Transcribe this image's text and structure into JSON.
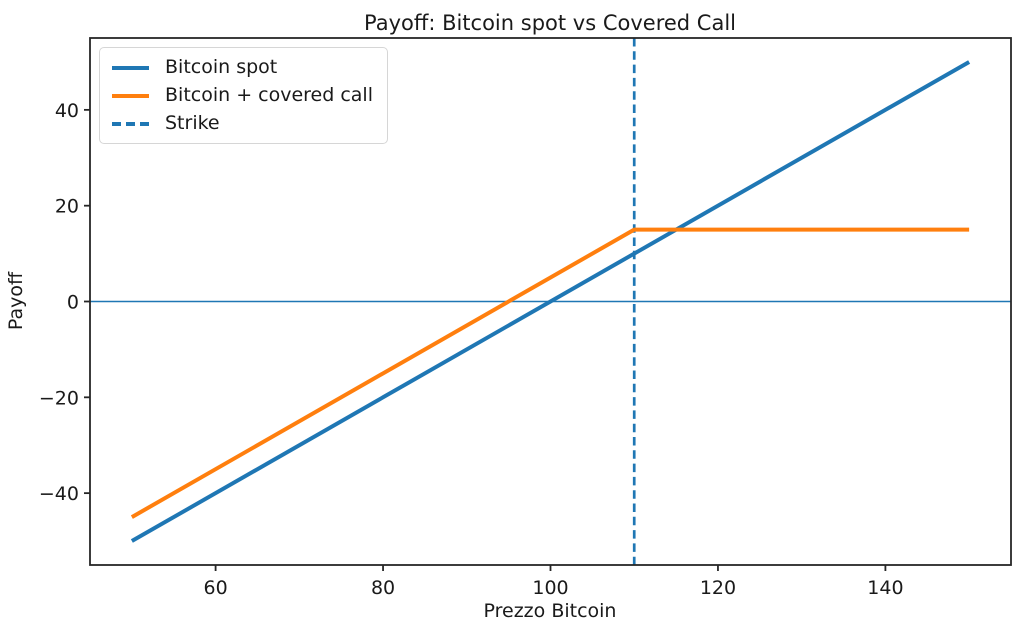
{
  "chart_data": {
    "type": "line",
    "title": "Payoff: Bitcoin spot vs Covered Call",
    "xlabel": "Prezzo Bitcoin",
    "ylabel": "Payoff",
    "xlim": [
      45,
      155
    ],
    "ylim": [
      -55,
      55
    ],
    "xticks": [
      60,
      80,
      100,
      120,
      140
    ],
    "yticks": [
      -40,
      -20,
      0,
      20,
      40
    ],
    "grid": false,
    "series": [
      {
        "name": "Bitcoin spot",
        "color": "#1f77b4",
        "style": "solid",
        "linewidth": 4,
        "x": [
          50,
          150
        ],
        "y": [
          -50,
          50
        ]
      },
      {
        "name": "Bitcoin + covered call",
        "color": "#ff7f0e",
        "style": "solid",
        "linewidth": 4,
        "x": [
          50,
          110,
          150
        ],
        "y": [
          -45,
          15,
          15
        ]
      }
    ],
    "reference_lines": {
      "strike": {
        "label": "Strike",
        "orientation": "vertical",
        "x": 110,
        "color": "#1f77b4",
        "style": "dashed",
        "linewidth": 2.7
      },
      "zero": {
        "orientation": "horizontal",
        "y": 0,
        "color": "#1f77b4",
        "style": "solid",
        "linewidth": 1.5
      }
    },
    "legend": {
      "position": "upper-left",
      "entries": [
        "Bitcoin spot",
        "Bitcoin + covered call",
        "Strike"
      ]
    },
    "colors": {
      "spine": "#262626",
      "text": "#1a1a1a",
      "background": "#ffffff"
    }
  }
}
